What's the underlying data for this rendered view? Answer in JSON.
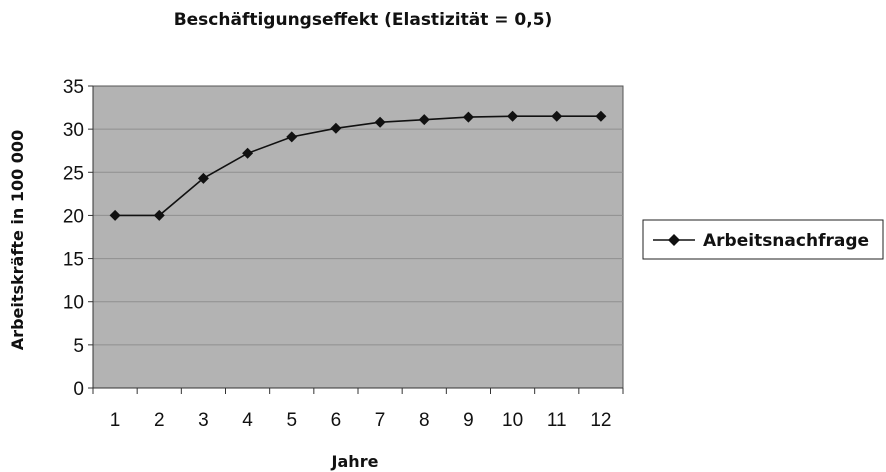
{
  "chart_data": {
    "type": "line",
    "title": "Beschäftigungseffekt (Elastizität = 0,5)",
    "xlabel": "Jahre",
    "ylabel": "Arbeitskräfte in 100 000",
    "categories": [
      "1",
      "2",
      "3",
      "4",
      "5",
      "6",
      "7",
      "8",
      "9",
      "10",
      "11",
      "12"
    ],
    "series": [
      {
        "name": "Arbeitsnachfrage",
        "values": [
          20,
          20,
          24.3,
          27.2,
          29.1,
          30.1,
          30.8,
          31.1,
          31.4,
          31.5,
          31.5,
          31.5
        ]
      }
    ],
    "ylim": [
      0,
      35
    ],
    "yticks": [
      "0",
      "5",
      "10",
      "15",
      "20",
      "25",
      "30",
      "35"
    ],
    "grid": true,
    "legend": "right",
    "colors": {
      "plot_background": "#b3b3b3",
      "line": "#111111",
      "grid": "#8f8f8f"
    }
  }
}
